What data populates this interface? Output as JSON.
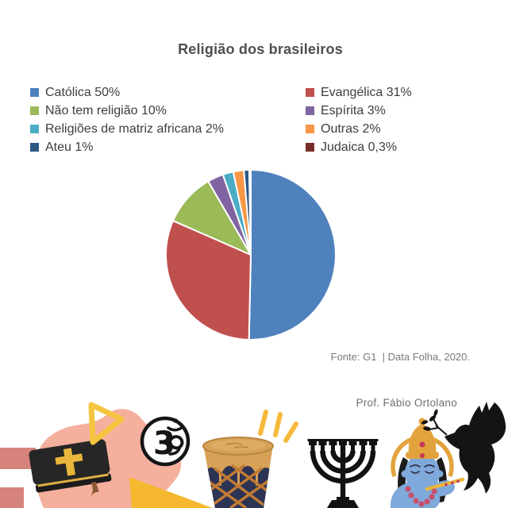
{
  "title": "Religião dos brasileiros",
  "legend": {
    "items": [
      {
        "label": "Católica 50%",
        "color": "#4F81BD"
      },
      {
        "label": "Evangélica 31%",
        "color": "#C0504D"
      },
      {
        "label": "Não tem religião 10%",
        "color": "#9BBB59"
      },
      {
        "label": "Espírita 3%",
        "color": "#8064A2"
      },
      {
        "label": "Religiões de matriz africana 2%",
        "color": "#4BACC6"
      },
      {
        "label": "Outras 2%",
        "color": "#F79646"
      },
      {
        "label": "Ateu 1%",
        "color": "#2C5784"
      },
      {
        "label": "Judaica 0,3%",
        "color": "#772C2A"
      }
    ]
  },
  "chart_data": {
    "type": "pie",
    "title": "Religião dos brasileiros",
    "labels": [
      "Católica",
      "Evangélica",
      "Não tem religião",
      "Espírita",
      "Religiões de matriz africana",
      "Outras",
      "Ateu",
      "Judaica"
    ],
    "values": [
      50,
      31,
      10,
      3,
      2,
      2,
      1,
      0.3
    ],
    "percent_labels": [
      "50%",
      "31%",
      "10%",
      "3%",
      "2%",
      "2%",
      "1%",
      "0,3%"
    ],
    "colors": [
      "#4F81BD",
      "#C0504D",
      "#9BBB59",
      "#8064A2",
      "#4BACC6",
      "#F79646",
      "#2C5784",
      "#772C2A"
    ],
    "start_angle_deg": 0,
    "direction": "clockwise",
    "legend_position": "top",
    "source": "Fonte: G1  | Data Folha, 2020."
  },
  "footer": {
    "source": "Fonte: G1  | Data Folha, 2020.",
    "credit": "Prof. Fábio Ortolano"
  },
  "decorations": {
    "icons": [
      "hand-holding-bible-icon",
      "om-icon",
      "drum-icon",
      "menorah-icon",
      "krishna-icon",
      "dove-icon"
    ],
    "accent_yellow": "#F5B82E",
    "hand_pink": "#F5AF9D",
    "dusky_pink": "#D6837D",
    "drum_navy": "#2C3353",
    "drum_tan": "#D7A158",
    "gold": "#E2A33C",
    "krishna_blue": "#7FA9DB",
    "silhouette_black": "#141414"
  }
}
